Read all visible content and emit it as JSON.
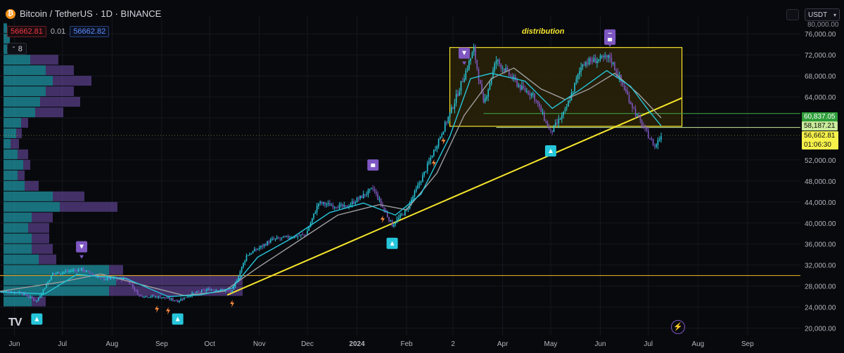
{
  "header": {
    "symbol": "Bitcoin / TetherUS · 1D · BINANCE",
    "logo_glyph": "₿",
    "sell_price": "56662.81",
    "spread": "0.01",
    "buy_price": "56662.82",
    "indicators_count": "8",
    "currency": "USDT"
  },
  "annotation": "distribution",
  "price_labels": {
    "level_1": "60,837.05",
    "level_2": "58,187.21",
    "current": "56,662.81",
    "countdown": "01:06:30"
  },
  "colors": {
    "background": "#08090d",
    "grid": "#15181f",
    "up": "#26c6da",
    "down": "#7e57c2",
    "fast_ma": "#26c6da",
    "slow_ma": "#9e9e9e",
    "trendline": "#f5e52b",
    "box_fill": "#2a2208",
    "box_border": "#f5e52b",
    "level_line": "#3fae49",
    "support_line": "#f5b72b",
    "current_price": "#f7f24a"
  },
  "chart_data": {
    "type": "candlestick",
    "yticks": [
      20000,
      24000,
      28000,
      32000,
      36000,
      40000,
      44000,
      48000,
      52000,
      56000,
      60000,
      64000,
      68000,
      72000,
      76000
    ],
    "ytick_labels": [
      "20,000.00",
      "24,000.00",
      "28,000.00",
      "32,000.00",
      "36,000.00",
      "40,000.00",
      "44,000.00",
      "48,000.00",
      "52,000.00",
      "56,000.00",
      "60,000.00",
      "64,000.00",
      "68,000.00",
      "72,000.00",
      "76,000.00"
    ],
    "ylim": [
      18600,
      79500
    ],
    "xlim": [
      "2023-05-23",
      "2024-10-04"
    ],
    "xticks": [
      {
        "date": "2023-06-01",
        "label": "Jun"
      },
      {
        "date": "2023-07-01",
        "label": "Jul"
      },
      {
        "date": "2023-08-01",
        "label": "Aug"
      },
      {
        "date": "2023-09-01",
        "label": "Sep"
      },
      {
        "date": "2023-10-01",
        "label": "Oct"
      },
      {
        "date": "2023-11-01",
        "label": "Nov"
      },
      {
        "date": "2023-12-01",
        "label": "Dec"
      },
      {
        "date": "2024-01-01",
        "label": "2024"
      },
      {
        "date": "2024-02-01",
        "label": "Feb"
      },
      {
        "date": "2024-03-01",
        "label": "2"
      },
      {
        "date": "2024-04-01",
        "label": "Apr"
      },
      {
        "date": "2024-05-01",
        "label": "May"
      },
      {
        "date": "2024-06-01",
        "label": "Jun"
      },
      {
        "date": "2024-07-01",
        "label": "Jul"
      },
      {
        "date": "2024-08-01",
        "label": "Aug"
      },
      {
        "date": "2024-09-01",
        "label": "Sep"
      }
    ],
    "price_path": [
      [
        "2023-05-23",
        27000
      ],
      [
        "2023-06-05",
        26800
      ],
      [
        "2023-06-15",
        25200
      ],
      [
        "2023-06-25",
        30400
      ],
      [
        "2023-07-13",
        31200
      ],
      [
        "2023-07-25",
        29400
      ],
      [
        "2023-08-10",
        29400
      ],
      [
        "2023-08-18",
        26200
      ],
      [
        "2023-09-01",
        25900
      ],
      [
        "2023-09-11",
        25200
      ],
      [
        "2023-09-20",
        26500
      ],
      [
        "2023-10-01",
        27400
      ],
      [
        "2023-10-15",
        27000
      ],
      [
        "2023-10-24",
        33800
      ],
      [
        "2023-11-09",
        36800
      ],
      [
        "2023-11-30",
        37800
      ],
      [
        "2023-12-08",
        43800
      ],
      [
        "2023-12-25",
        43000
      ],
      [
        "2024-01-11",
        46500
      ],
      [
        "2024-01-23",
        39600
      ],
      [
        "2024-02-01",
        42500
      ],
      [
        "2024-02-12",
        49500
      ],
      [
        "2024-02-29",
        61500
      ],
      [
        "2024-03-14",
        73000
      ],
      [
        "2024-03-20",
        62500
      ],
      [
        "2024-03-28",
        71000
      ],
      [
        "2024-04-13",
        65500
      ],
      [
        "2024-04-20",
        64500
      ],
      [
        "2024-05-01",
        57200
      ],
      [
        "2024-05-10",
        61200
      ],
      [
        "2024-05-21",
        70500
      ],
      [
        "2024-06-07",
        71500
      ],
      [
        "2024-06-24",
        60300
      ],
      [
        "2024-07-05",
        54500
      ],
      [
        "2024-07-09",
        56662
      ]
    ],
    "ma_fast_path": [
      [
        "2023-05-23",
        26900
      ],
      [
        "2023-06-20",
        26500
      ],
      [
        "2023-07-10",
        30200
      ],
      [
        "2023-08-10",
        29400
      ],
      [
        "2023-09-05",
        26000
      ],
      [
        "2023-09-25",
        26300
      ],
      [
        "2023-10-15",
        27600
      ],
      [
        "2023-10-31",
        33500
      ],
      [
        "2023-11-20",
        36900
      ],
      [
        "2023-12-15",
        42000
      ],
      [
        "2024-01-05",
        43800
      ],
      [
        "2024-01-25",
        41500
      ],
      [
        "2024-02-10",
        45500
      ],
      [
        "2024-02-28",
        56500
      ],
      [
        "2024-03-12",
        67500
      ],
      [
        "2024-03-25",
        68500
      ],
      [
        "2024-04-15",
        67000
      ],
      [
        "2024-05-02",
        61800
      ],
      [
        "2024-05-20",
        65500
      ],
      [
        "2024-06-05",
        69000
      ],
      [
        "2024-06-20",
        66000
      ],
      [
        "2024-07-01",
        61500
      ],
      [
        "2024-07-09",
        58500
      ]
    ],
    "ma_slow_path": [
      [
        "2023-05-23",
        27000
      ],
      [
        "2023-07-01",
        28800
      ],
      [
        "2023-07-25",
        30300
      ],
      [
        "2023-08-20",
        28200
      ],
      [
        "2023-09-15",
        26200
      ],
      [
        "2023-10-10",
        27000
      ],
      [
        "2023-10-31",
        31500
      ],
      [
        "2023-11-25",
        36500
      ],
      [
        "2023-12-20",
        41500
      ],
      [
        "2024-01-15",
        43500
      ],
      [
        "2024-02-01",
        42500
      ],
      [
        "2024-02-20",
        49500
      ],
      [
        "2024-03-08",
        60500
      ],
      [
        "2024-03-25",
        67500
      ],
      [
        "2024-04-08",
        69500
      ],
      [
        "2024-04-25",
        65500
      ],
      [
        "2024-05-10",
        63500
      ],
      [
        "2024-05-25",
        65500
      ],
      [
        "2024-06-10",
        68500
      ],
      [
        "2024-06-25",
        64500
      ],
      [
        "2024-07-09",
        60000
      ]
    ],
    "distribution_box": {
      "start": "2024-02-28",
      "end": "2024-07-22",
      "low": 58400,
      "high": 73400
    },
    "horizontal_levels": [
      {
        "name": "level_1",
        "price": 60837.05,
        "start": "2024-03-20"
      },
      {
        "name": "level_2",
        "price": 58187.21,
        "start": "2024-03-28"
      },
      {
        "name": "support",
        "price": 30000,
        "start": "2023-05-23"
      }
    ],
    "trendline": {
      "start": [
        "2023-10-12",
        26300
      ],
      "end": [
        "2024-07-22",
        63800
      ]
    },
    "current_price": 56662.81,
    "sell_markers": [
      "2023-07-13",
      "2024-03-08",
      "2024-06-07"
    ],
    "sell_lock_markers": [
      "2024-01-11",
      "2024-06-07"
    ],
    "buy_markers": [
      "2023-06-15",
      "2023-09-11",
      "2024-01-23",
      "2024-05-01"
    ],
    "bolt_markers": [
      "2023-08-29",
      "2023-09-05",
      "2023-10-15",
      "2024-01-17",
      "2024-02-18",
      "2024-02-24"
    ],
    "volume_profile": [
      {
        "price": 77000,
        "up": 5,
        "down": 0
      },
      {
        "price": 75000,
        "up": 9,
        "down": 0
      },
      {
        "price": 73000,
        "up": 22,
        "down": 5
      },
      {
        "price": 71000,
        "up": 38,
        "down": 40
      },
      {
        "price": 69000,
        "up": 60,
        "down": 40
      },
      {
        "price": 67000,
        "up": 70,
        "down": 55
      },
      {
        "price": 65000,
        "up": 60,
        "down": 40
      },
      {
        "price": 63000,
        "up": 52,
        "down": 57
      },
      {
        "price": 61000,
        "up": 45,
        "down": 40
      },
      {
        "price": 59000,
        "up": 25,
        "down": 10
      },
      {
        "price": 57000,
        "up": 18,
        "down": 8
      },
      {
        "price": 55000,
        "up": 10,
        "down": 12
      },
      {
        "price": 53000,
        "up": 20,
        "down": 15
      },
      {
        "price": 51000,
        "up": 28,
        "down": 10
      },
      {
        "price": 49000,
        "up": 20,
        "down": 10
      },
      {
        "price": 47000,
        "up": 30,
        "down": 20
      },
      {
        "price": 45000,
        "up": 70,
        "down": 45
      },
      {
        "price": 43000,
        "up": 80,
        "down": 82
      },
      {
        "price": 41000,
        "up": 40,
        "down": 30
      },
      {
        "price": 39000,
        "up": 35,
        "down": 30
      },
      {
        "price": 37000,
        "up": 40,
        "down": 25
      },
      {
        "price": 35000,
        "up": 40,
        "down": 30
      },
      {
        "price": 33000,
        "up": 50,
        "down": 25
      },
      {
        "price": 31000,
        "up": 150,
        "down": 20
      },
      {
        "price": 29000,
        "up": 160,
        "down": 180
      },
      {
        "price": 27000,
        "up": 150,
        "down": 190
      },
      {
        "price": 25000,
        "up": 40,
        "down": 20
      }
    ]
  }
}
